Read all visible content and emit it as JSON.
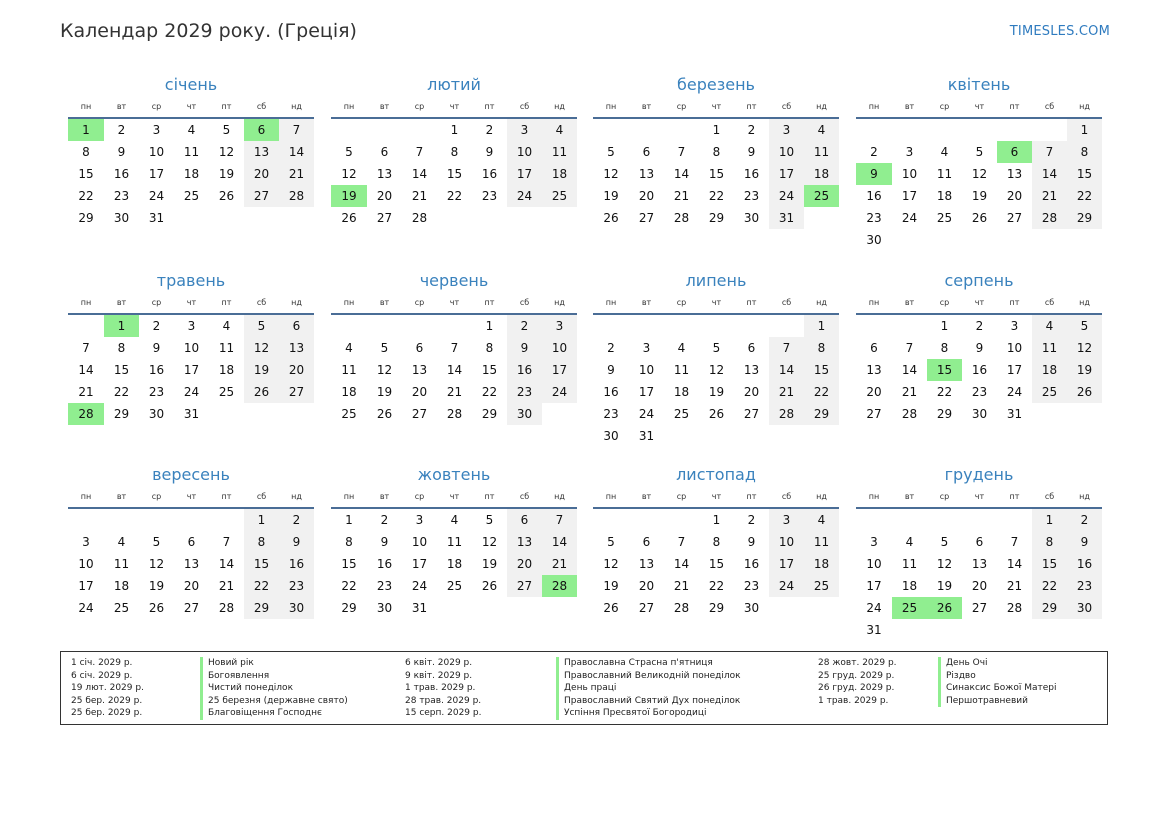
{
  "header": {
    "title": "Календар 2029 року. (Греція)",
    "brand": "TIMESLES.COM"
  },
  "weekday_labels": [
    "пн",
    "вт",
    "ср",
    "чт",
    "пт",
    "сб",
    "нд"
  ],
  "colors": {
    "accent": "#3a82bd",
    "holiday": "#90ee90",
    "weekend": "#f1f1f1",
    "rule": "#4a6d96"
  },
  "months": [
    {
      "name": "січень",
      "offset": 0,
      "days": 31,
      "holidays": [
        1,
        6
      ]
    },
    {
      "name": "лютий",
      "offset": 3,
      "days": 28,
      "holidays": [
        19
      ]
    },
    {
      "name": "березень",
      "offset": 3,
      "days": 31,
      "holidays": [
        25
      ]
    },
    {
      "name": "квітень",
      "offset": 6,
      "days": 30,
      "holidays": [
        6,
        9
      ]
    },
    {
      "name": "травень",
      "offset": 1,
      "days": 31,
      "holidays": [
        1,
        28
      ]
    },
    {
      "name": "червень",
      "offset": 4,
      "days": 30,
      "holidays": []
    },
    {
      "name": "липень",
      "offset": 6,
      "days": 31,
      "holidays": []
    },
    {
      "name": "серпень",
      "offset": 2,
      "days": 31,
      "holidays": [
        15
      ]
    },
    {
      "name": "вересень",
      "offset": 5,
      "days": 30,
      "holidays": []
    },
    {
      "name": "жовтень",
      "offset": 0,
      "days": 31,
      "holidays": [
        28
      ]
    },
    {
      "name": "листопад",
      "offset": 3,
      "days": 30,
      "holidays": []
    },
    {
      "name": "грудень",
      "offset": 5,
      "days": 31,
      "holidays": [
        25,
        26
      ]
    }
  ],
  "legend": {
    "col1": {
      "dates": [
        "1 січ. 2029 р.",
        "6 січ. 2029 р.",
        "19 лют. 2029 р.",
        "25 бер. 2029 р.",
        "25 бер. 2029 р."
      ],
      "names": [
        "Новий рік",
        "Богоявлення",
        "Чистий понеділок",
        "25 березня (державне свято)",
        "Благовіщення Господнє"
      ]
    },
    "col2": {
      "dates": [
        "6 квіт. 2029 р.",
        "9 квіт. 2029 р.",
        "1 трав. 2029 р.",
        "28 трав. 2029 р.",
        "15 серп. 2029 р."
      ],
      "names": [
        "Православна Страсна п'ятниця",
        "Православний Великодній понеділок",
        "День праці",
        "Православний Святий Дух понеділок",
        "Успіння Пресвятої Богородиці"
      ]
    },
    "col3": {
      "dates": [
        "28 жовт. 2029 р.",
        "25 груд. 2029 р.",
        "26 груд. 2029 р.",
        "1 трав. 2029 р."
      ],
      "names": [
        "День Очі",
        "Різдво",
        "Синаксис Божої Матері",
        "Першотравневий"
      ]
    }
  }
}
